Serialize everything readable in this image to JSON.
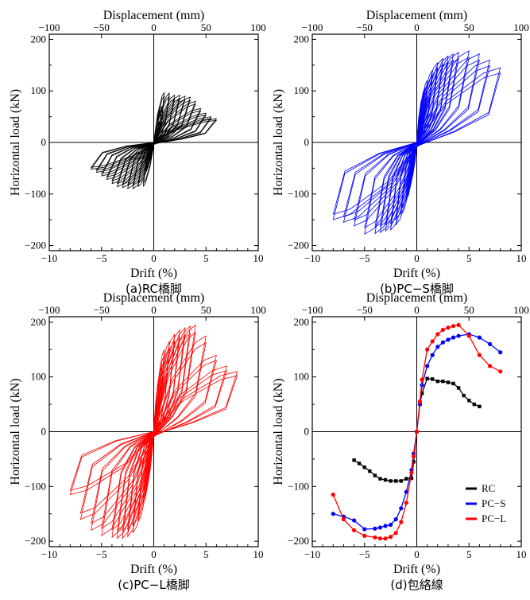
{
  "figure": {
    "panels": [
      {
        "caption": "(a)RC橋脚",
        "top_label": "Displacement (mm)",
        "x_label": "Drift (%)",
        "y_label": "Horizontal load (kN)",
        "x_ticks": [
          "−10",
          "−5",
          "0",
          "5",
          "10"
        ],
        "top_ticks": [
          "−100",
          "−50",
          "0",
          "50",
          "100"
        ],
        "y_ticks": [
          "200",
          "100",
          "0",
          "−100",
          "−200"
        ],
        "color": "#000000"
      },
      {
        "caption": "(b)PC−S橋脚",
        "top_label": "Displacement (mm)",
        "x_label": "Drift (%)",
        "y_label": "Horizontal load (kN)",
        "x_ticks": [
          "−10",
          "−5",
          "0",
          "5",
          "10"
        ],
        "top_ticks": [
          "−100",
          "−50",
          "0",
          "50",
          "100"
        ],
        "y_ticks": [
          "200",
          "100",
          "0",
          "−100",
          "−200"
        ],
        "color": "#0000ff"
      },
      {
        "caption": "(c)PC−L橋脚",
        "top_label": "Displacement (mm)",
        "x_label": "Drift (%)",
        "y_label": "Horizontal load (kN)",
        "x_ticks": [
          "−10",
          "−5",
          "0",
          "5",
          "10"
        ],
        "top_ticks": [
          "−100",
          "−50",
          "0",
          "50",
          "100"
        ],
        "y_ticks": [
          "200",
          "100",
          "0",
          "−100",
          "−200"
        ],
        "color": "#ff0000"
      },
      {
        "caption": "(d)包絡線",
        "top_label": "Displacement (mm)",
        "x_label": "Drift (%)",
        "y_label": "Horizontal load (kN)",
        "x_ticks": [
          "−10",
          "−5",
          "0",
          "5",
          "10"
        ],
        "top_ticks": [
          "−100",
          "−50",
          "0",
          "50",
          "100"
        ],
        "y_ticks": [
          "200",
          "100",
          "0",
          "−100",
          "−200"
        ],
        "legend": [
          "RC",
          "PC−S",
          "PC−L"
        ]
      }
    ]
  },
  "chart_data": [
    {
      "type": "line",
      "subtype": "hysteresis",
      "caption": "(a)RC橋脚",
      "xlabel": "Drift (%)",
      "ylabel": "Horizontal load (kN)",
      "top_xlabel": "Displacement (mm)",
      "xlim": [
        -10,
        10
      ],
      "ylim": [
        -210,
        210
      ],
      "top_xlim": [
        -100,
        100
      ],
      "color": "#000000",
      "cycles": [
        {
          "amp": 0.3,
          "pos": 25,
          "neg": -22
        },
        {
          "amp": 0.5,
          "pos": 40,
          "neg": -38
        },
        {
          "amp": 0.75,
          "pos": 70,
          "neg": -55
        },
        {
          "amp": 1.0,
          "pos": 97,
          "neg": -85
        },
        {
          "amp": 1.5,
          "pos": 96,
          "neg": -86
        },
        {
          "amp": 2.0,
          "pos": 92,
          "neg": -90
        },
        {
          "amp": 2.5,
          "pos": 92,
          "neg": -90
        },
        {
          "amp": 3.0,
          "pos": 90,
          "neg": -88
        },
        {
          "amp": 3.5,
          "pos": 88,
          "neg": -86
        },
        {
          "amp": 4.0,
          "pos": 80,
          "neg": -80
        },
        {
          "amp": 4.5,
          "pos": 66,
          "neg": -72
        },
        {
          "amp": 5.0,
          "pos": 57,
          "neg": -65
        },
        {
          "amp": 5.5,
          "pos": 50,
          "neg": -58
        },
        {
          "amp": 6.0,
          "pos": 46,
          "neg": -52
        }
      ]
    },
    {
      "type": "line",
      "subtype": "hysteresis",
      "caption": "(b)PC−S橋脚",
      "xlabel": "Drift (%)",
      "ylabel": "Horizontal load (kN)",
      "top_xlabel": "Displacement (mm)",
      "xlim": [
        -10,
        10
      ],
      "ylim": [
        -210,
        210
      ],
      "top_xlim": [
        -100,
        100
      ],
      "color": "#0000ff",
      "cycles": [
        {
          "amp": 0.3,
          "pos": 50,
          "neg": -40
        },
        {
          "amp": 0.5,
          "pos": 85,
          "neg": -70
        },
        {
          "amp": 0.75,
          "pos": 105,
          "neg": -85
        },
        {
          "amp": 1.0,
          "pos": 120,
          "neg": -110
        },
        {
          "amp": 1.5,
          "pos": 140,
          "neg": -140
        },
        {
          "amp": 2.0,
          "pos": 155,
          "neg": -160
        },
        {
          "amp": 2.5,
          "pos": 163,
          "neg": -170
        },
        {
          "amp": 3.0,
          "pos": 168,
          "neg": -172
        },
        {
          "amp": 3.5,
          "pos": 172,
          "neg": -175
        },
        {
          "amp": 4.0,
          "pos": 175,
          "neg": -177
        },
        {
          "amp": 5.0,
          "pos": 178,
          "neg": -178
        },
        {
          "amp": 6.0,
          "pos": 172,
          "neg": -162
        },
        {
          "amp": 7.0,
          "pos": 160,
          "neg": -155
        },
        {
          "amp": 8.0,
          "pos": 145,
          "neg": -150
        }
      ]
    },
    {
      "type": "line",
      "subtype": "hysteresis",
      "caption": "(c)PC−L橋脚",
      "xlabel": "Drift (%)",
      "ylabel": "Horizontal load (kN)",
      "top_xlabel": "Displacement (mm)",
      "xlim": [
        -10,
        10
      ],
      "ylim": [
        -210,
        210
      ],
      "top_xlim": [
        -100,
        100
      ],
      "color": "#ff0000",
      "cycles": [
        {
          "amp": 0.3,
          "pos": 55,
          "neg": -45
        },
        {
          "amp": 0.5,
          "pos": 95,
          "neg": -75
        },
        {
          "amp": 0.75,
          "pos": 125,
          "neg": -100
        },
        {
          "amp": 1.0,
          "pos": 150,
          "neg": -130
        },
        {
          "amp": 1.5,
          "pos": 165,
          "neg": -165
        },
        {
          "amp": 2.0,
          "pos": 178,
          "neg": -185
        },
        {
          "amp": 2.5,
          "pos": 186,
          "neg": -192
        },
        {
          "amp": 3.0,
          "pos": 190,
          "neg": -195
        },
        {
          "amp": 3.5,
          "pos": 193,
          "neg": -195
        },
        {
          "amp": 4.0,
          "pos": 195,
          "neg": -193
        },
        {
          "amp": 5.0,
          "pos": 175,
          "neg": -190
        },
        {
          "amp": 6.0,
          "pos": 140,
          "neg": -180
        },
        {
          "amp": 7.0,
          "pos": 120,
          "neg": -160
        },
        {
          "amp": 8.0,
          "pos": 110,
          "neg": -115
        }
      ]
    },
    {
      "type": "line",
      "subtype": "envelope",
      "caption": "(d)包絡線",
      "xlabel": "Drift (%)",
      "ylabel": "Horizontal load (kN)",
      "top_xlabel": "Displacement (mm)",
      "xlim": [
        -10,
        10
      ],
      "ylim": [
        -210,
        210
      ],
      "top_xlim": [
        -100,
        100
      ],
      "legend_position": "lower-right",
      "series": [
        {
          "name": "RC",
          "color": "#000000",
          "marker": "square",
          "x": [
            -6,
            -5.5,
            -5,
            -4.5,
            -4,
            -3.5,
            -3,
            -2.5,
            -2,
            -1.5,
            -1,
            -0.5,
            -0.3,
            0,
            0.3,
            0.5,
            1,
            1.5,
            2,
            2.5,
            3,
            3.5,
            4,
            4.5,
            5,
            5.5,
            6
          ],
          "y": [
            -52,
            -58,
            -65,
            -72,
            -80,
            -86,
            -88,
            -90,
            -90,
            -90,
            -86,
            -85,
            -55,
            0,
            50,
            70,
            97,
            96,
            92,
            92,
            90,
            88,
            80,
            66,
            57,
            50,
            46
          ]
        },
        {
          "name": "PC−S",
          "color": "#0000ff",
          "marker": "circle",
          "x": [
            -8,
            -7,
            -6,
            -5,
            -4,
            -3.5,
            -3,
            -2.5,
            -2,
            -1.5,
            -1,
            -0.5,
            -0.3,
            0,
            0.3,
            0.5,
            1,
            1.5,
            2,
            2.5,
            3,
            3.5,
            4,
            5,
            6,
            7,
            8
          ],
          "y": [
            -150,
            -155,
            -162,
            -178,
            -177,
            -175,
            -172,
            -170,
            -160,
            -140,
            -110,
            -70,
            -40,
            0,
            50,
            85,
            120,
            140,
            155,
            163,
            168,
            172,
            175,
            178,
            172,
            160,
            145
          ]
        },
        {
          "name": "PC−L",
          "color": "#ff0000",
          "marker": "circle",
          "x": [
            -8,
            -7,
            -6,
            -5,
            -4,
            -3.5,
            -3,
            -2.5,
            -2,
            -1.5,
            -1,
            -0.5,
            -0.3,
            0,
            0.3,
            0.5,
            1,
            1.5,
            2,
            2.5,
            3,
            3.5,
            4,
            5,
            6,
            7,
            8
          ],
          "y": [
            -115,
            -160,
            -180,
            -190,
            -193,
            -195,
            -195,
            -192,
            -185,
            -165,
            -130,
            -75,
            -45,
            0,
            55,
            95,
            150,
            165,
            178,
            186,
            190,
            193,
            195,
            175,
            140,
            120,
            110
          ]
        }
      ]
    }
  ]
}
